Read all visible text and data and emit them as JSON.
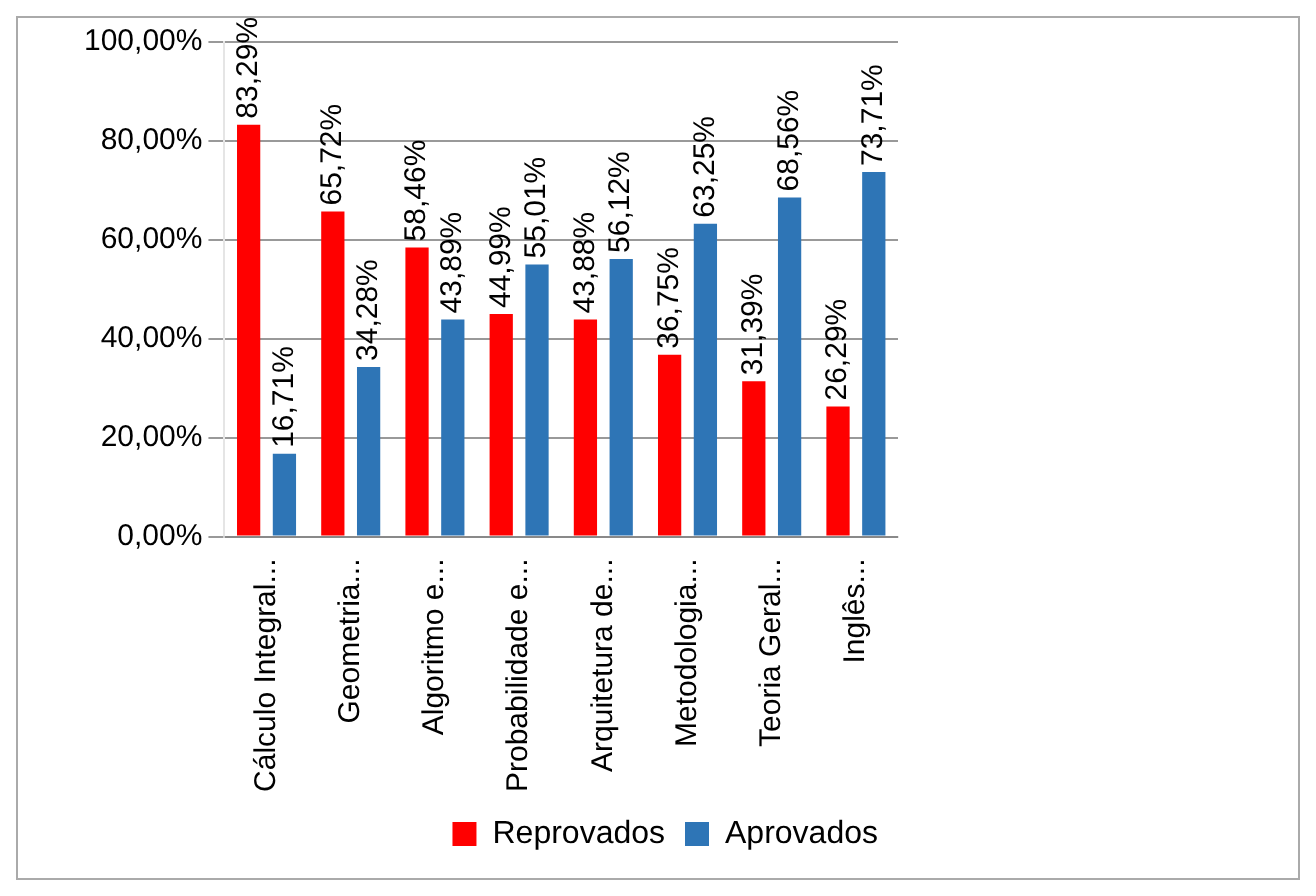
{
  "chart_data": {
    "type": "bar",
    "categories": [
      "Cálculo Integral...",
      "Geometria...",
      "Algoritmo e...",
      "Probabilidade e...",
      "Arquitetura de...",
      "Metodologia...",
      "Teoria Geral...",
      "Inglês..."
    ],
    "series": [
      {
        "name": "Reprovados",
        "color": "#ff0000",
        "values": [
          83.29,
          65.72,
          58.46,
          44.99,
          43.88,
          36.75,
          31.39,
          26.29
        ],
        "value_labels": [
          "83,29%",
          "65,72%",
          "58,46%",
          "44,99%",
          "43,88%",
          "36,75%",
          "31,39%",
          "26,29%"
        ]
      },
      {
        "name": "Aprovados",
        "color": "#2e75b6",
        "values": [
          16.71,
          34.28,
          43.89,
          55.01,
          56.12,
          63.25,
          68.56,
          73.71
        ],
        "value_labels": [
          "16,71%",
          "34,28%",
          "43,89%",
          "55,01%",
          "56,12%",
          "63,25%",
          "68,56%",
          "73,71%"
        ]
      }
    ],
    "ylim": [
      0,
      100
    ],
    "yticks": [
      {
        "value": 0,
        "label": "0,00%"
      },
      {
        "value": 20,
        "label": "20,00%"
      },
      {
        "value": 40,
        "label": "40,00%"
      },
      {
        "value": 60,
        "label": "60,00%"
      },
      {
        "value": 80,
        "label": "80,00%"
      },
      {
        "value": 100,
        "label": "100,00%"
      }
    ],
    "grid": "y",
    "legend": "bottom"
  }
}
